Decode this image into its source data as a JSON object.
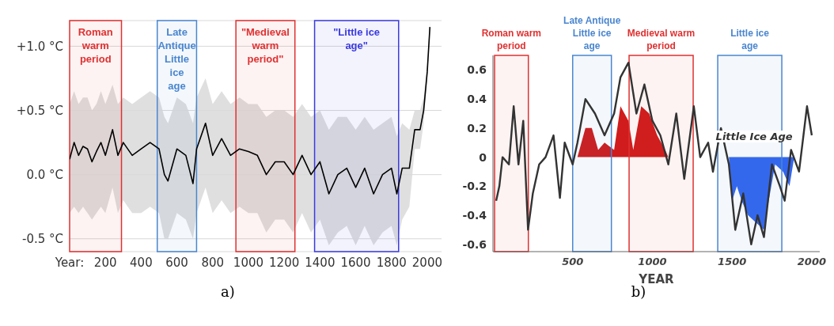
{
  "chart_data": [
    {
      "type": "line",
      "xlim": [
        0,
        2080
      ],
      "ylim": [
        -0.6,
        1.2
      ],
      "xticks": [
        {
          "value": 0,
          "label": "Year:"
        },
        200,
        400,
        600,
        800,
        1000,
        1200,
        1400,
        1600,
        1800,
        2000
      ],
      "yticks": [
        {
          "value": -0.5,
          "label": "-0.5 °C"
        },
        {
          "value": 0,
          "label": "0.0 °C"
        },
        {
          "value": 0.5,
          "label": "+0.5 °C"
        },
        {
          "value": 1,
          "label": "+1.0 °C"
        }
      ],
      "grid": "y",
      "bands": [
        {
          "axis": "x",
          "from": 0,
          "to": 290,
          "label": "Roman warm period",
          "color": "#e03131"
        },
        {
          "axis": "x",
          "from": 490,
          "to": 710,
          "label": "Late Antique Little ice age",
          "color": "#4a86d0"
        },
        {
          "axis": "x",
          "from": 930,
          "to": 1260,
          "label": "\"Medieval warm period\"",
          "color": "#e03131"
        },
        {
          "axis": "x",
          "from": 1370,
          "to": 1840,
          "label": "\"Little ice age\"",
          "color": "#3a3ae0"
        }
      ],
      "series": [
        {
          "color": "#000000",
          "x": [
            0,
            25,
            50,
            75,
            100,
            125,
            150,
            175,
            200,
            240,
            270,
            300,
            350,
            400,
            450,
            500,
            530,
            550,
            600,
            650,
            690,
            710,
            760,
            800,
            850,
            900,
            950,
            1000,
            1050,
            1100,
            1150,
            1200,
            1250,
            1300,
            1350,
            1400,
            1450,
            1500,
            1550,
            1600,
            1650,
            1700,
            1750,
            1800,
            1830,
            1860,
            1900,
            1930,
            1960,
            1980,
            2000,
            2015
          ],
          "values": [
            0.12,
            0.25,
            0.15,
            0.22,
            0.2,
            0.1,
            0.18,
            0.25,
            0.15,
            0.35,
            0.15,
            0.25,
            0.15,
            0.2,
            0.25,
            0.2,
            0.0,
            -0.05,
            0.2,
            0.15,
            -0.07,
            0.2,
            0.4,
            0.15,
            0.28,
            0.15,
            0.2,
            0.18,
            0.15,
            0.0,
            0.1,
            0.1,
            0.0,
            0.15,
            0.0,
            0.1,
            -0.15,
            0.0,
            0.05,
            -0.1,
            0.05,
            -0.15,
            0.0,
            0.05,
            -0.15,
            0.05,
            0.05,
            0.35,
            0.35,
            0.5,
            0.8,
            1.15
          ],
          "lower": [
            -0.3,
            -0.25,
            -0.3,
            -0.25,
            -0.3,
            -0.35,
            -0.3,
            -0.25,
            -0.3,
            -0.1,
            -0.3,
            -0.2,
            -0.3,
            -0.3,
            -0.25,
            -0.3,
            -0.5,
            -0.5,
            -0.3,
            -0.35,
            -0.5,
            -0.3,
            -0.1,
            -0.3,
            -0.2,
            -0.3,
            -0.25,
            -0.3,
            -0.3,
            -0.45,
            -0.35,
            -0.35,
            -0.45,
            -0.3,
            -0.45,
            -0.35,
            -0.55,
            -0.45,
            -0.4,
            -0.55,
            -0.4,
            -0.55,
            -0.45,
            -0.4,
            -0.55,
            -0.35,
            -0.25,
            0.2,
            0.2,
            0.4,
            0.75,
            1.1
          ],
          "upper": [
            0.55,
            0.65,
            0.55,
            0.6,
            0.6,
            0.5,
            0.55,
            0.65,
            0.55,
            0.7,
            0.55,
            0.6,
            0.55,
            0.6,
            0.65,
            0.6,
            0.45,
            0.4,
            0.6,
            0.55,
            0.4,
            0.6,
            0.75,
            0.55,
            0.65,
            0.55,
            0.6,
            0.55,
            0.55,
            0.45,
            0.5,
            0.5,
            0.45,
            0.55,
            0.45,
            0.5,
            0.35,
            0.45,
            0.45,
            0.35,
            0.45,
            0.35,
            0.4,
            0.45,
            0.3,
            0.4,
            0.35,
            0.5,
            0.5,
            0.6,
            0.85,
            1.2
          ]
        }
      ],
      "annotations": [
        "a)"
      ]
    },
    {
      "type": "line",
      "xlim": [
        0,
        2050
      ],
      "ylim": [
        -0.65,
        0.7
      ],
      "xticks": [
        500,
        1000,
        1500,
        2000
      ],
      "yticks": [
        -0.6,
        -0.4,
        -0.2,
        0,
        0.2,
        0.4,
        0.6
      ],
      "xlabel": "YEAR",
      "bands": [
        {
          "axis": "x",
          "from": 10,
          "to": 222,
          "label": "Roman warm period",
          "color": "#e03131"
        },
        {
          "axis": "x",
          "from": 500,
          "to": 743,
          "label": "Late Antique Little ice age",
          "color": "#4a86d0"
        },
        {
          "axis": "x",
          "from": 854,
          "to": 1256,
          "label": "Medieval warm period",
          "color": "#e03131"
        },
        {
          "axis": "x",
          "from": 1410,
          "to": 1812,
          "label": "Little ice age",
          "color": "#4a86d0"
        }
      ],
      "series": [
        {
          "type": "area",
          "color": "#d01c1c",
          "x": [
            530,
            580,
            620,
            660,
            700,
            760,
            800,
            850,
            880,
            930,
            980,
            1030,
            1080,
            1100
          ],
          "values": [
            0,
            0.2,
            0.2,
            0.05,
            0.1,
            0.05,
            0.35,
            0.25,
            0.05,
            0.35,
            0.3,
            0.15,
            0.05,
            0
          ]
        },
        {
          "type": "area",
          "color": "#3366ee",
          "x": [
            1480,
            1500,
            1530,
            1560,
            1600,
            1650,
            1700,
            1730,
            1770,
            1820,
            1860,
            1890
          ],
          "values": [
            0,
            -0.3,
            -0.2,
            -0.3,
            -0.4,
            -0.45,
            -0.5,
            -0.3,
            -0.05,
            -0.1,
            -0.2,
            0
          ]
        },
        {
          "color": "#333333",
          "x": [
            20,
            40,
            60,
            100,
            130,
            160,
            190,
            220,
            250,
            290,
            330,
            380,
            420,
            450,
            500,
            530,
            580,
            640,
            700,
            760,
            800,
            850,
            900,
            950,
            1000,
            1050,
            1100,
            1150,
            1200,
            1260,
            1300,
            1350,
            1380,
            1430,
            1480,
            1520,
            1570,
            1620,
            1660,
            1700,
            1750,
            1800,
            1830,
            1870,
            1920,
            1970,
            2000
          ],
          "values": [
            -0.3,
            -0.2,
            0.0,
            -0.05,
            0.35,
            -0.05,
            0.25,
            -0.5,
            -0.25,
            -0.05,
            0.0,
            0.15,
            -0.28,
            0.1,
            -0.05,
            0.1,
            0.4,
            0.3,
            0.15,
            0.3,
            0.55,
            0.65,
            0.3,
            0.5,
            0.25,
            0.15,
            -0.05,
            0.3,
            -0.15,
            0.35,
            0.0,
            0.1,
            -0.1,
            0.2,
            -0.05,
            -0.5,
            -0.25,
            -0.6,
            -0.4,
            -0.55,
            -0.05,
            -0.2,
            -0.3,
            0.05,
            -0.1,
            0.35,
            0.15
          ]
        }
      ],
      "annotations": [
        "Little Ice Age",
        "b)"
      ]
    }
  ]
}
